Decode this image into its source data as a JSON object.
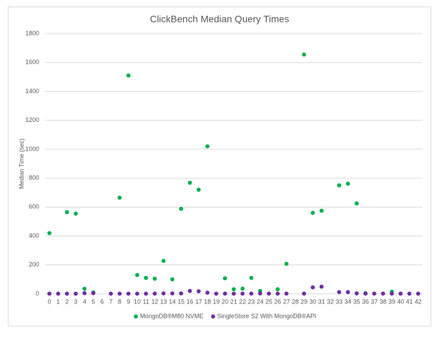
{
  "chart_data": {
    "type": "scatter",
    "title": "ClickBench Median Query Times",
    "y_label": "Median Time (sec)",
    "categories": [
      "0",
      "1",
      "2",
      "3",
      "4",
      "5",
      "6",
      "7",
      "8",
      "9",
      "10",
      "11",
      "12",
      "13",
      "14",
      "15",
      "16",
      "17",
      "18",
      "19",
      "20",
      "21",
      "22",
      "23",
      "24",
      "25",
      "26",
      "27",
      "28",
      "29",
      "30",
      "31",
      "32",
      "33",
      "34",
      "35",
      "36",
      "37",
      "38",
      "39",
      "40",
      "41",
      "42"
    ],
    "series": [
      {
        "name": "MongoDB®M80 NVME",
        "color": "#00b050",
        "values": [
          420,
          null,
          565,
          555,
          35,
          10,
          null,
          null,
          665,
          1510,
          130,
          110,
          105,
          228,
          100,
          588,
          768,
          720,
          1020,
          null,
          108,
          32,
          36,
          110,
          20,
          null,
          32,
          208,
          null,
          1655,
          560,
          575,
          null,
          750,
          762,
          625,
          5,
          null,
          null,
          15,
          null,
          null,
          null
        ]
      },
      {
        "name": "SingleStore S2 With MongoDB®API",
        "color": "#7030a0",
        "values": [
          1,
          1,
          1,
          1,
          5,
          5,
          null,
          1,
          1,
          1,
          1,
          1,
          2,
          3,
          3,
          3,
          20,
          18,
          8,
          1,
          2,
          1,
          2,
          2,
          3,
          2,
          2,
          2,
          null,
          2,
          45,
          50,
          null,
          12,
          12,
          3,
          2,
          2,
          2,
          2,
          2,
          1,
          1
        ]
      }
    ],
    "ylim": [
      0,
      1800
    ],
    "yticks": [
      0,
      200,
      400,
      600,
      800,
      1000,
      1200,
      1400,
      1600,
      1800
    ],
    "grid": true
  }
}
